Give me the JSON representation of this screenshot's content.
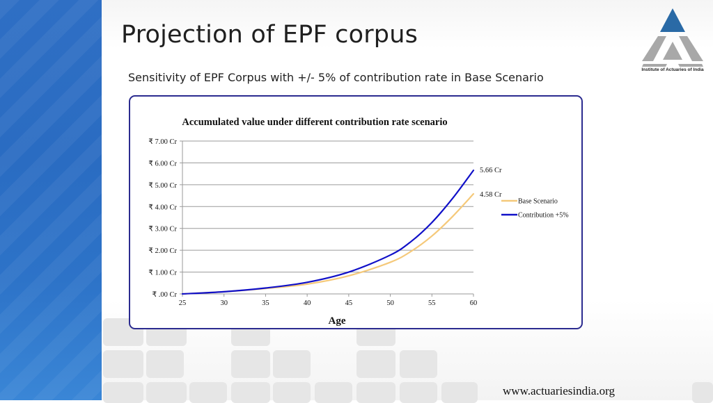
{
  "slide": {
    "title": "Projection of EPF corpus",
    "subtitle": "Sensitivity of EPF Corpus with +/- 5% of contribution rate in Base Scenario",
    "footer_url": "www.actuariesindia.org",
    "logo_caption": "Institute of Actuaries of India",
    "colors": {
      "accent_blue": "#2f6fc4",
      "chart_border": "#2b2b8f",
      "logo_blue": "#2a6aa6",
      "logo_grey": "#a8a8a8"
    }
  },
  "chart_data": {
    "type": "line",
    "title": "Accumulated value under different contribution rate scenario",
    "xlabel": "Age",
    "ylabel": "",
    "xlim": [
      25,
      60
    ],
    "ylim": [
      0,
      7
    ],
    "x_ticks": [
      25,
      30,
      35,
      40,
      45,
      50,
      55,
      60
    ],
    "y_ticks": [
      0,
      1,
      2,
      3,
      4,
      5,
      6,
      7
    ],
    "y_tick_labels": [
      "₹ .00 Cr",
      "₹ 1.00 Cr",
      "₹ 2.00 Cr",
      "₹ 3.00 Cr",
      "₹ 4.00 Cr",
      "₹ 5.00 Cr",
      "₹ 6.00 Cr",
      "₹ 7.00 Cr"
    ],
    "grid": true,
    "legend_position": "right",
    "x": [
      25,
      30,
      35,
      40,
      45,
      50,
      52.5,
      55,
      57.5,
      60
    ],
    "series": [
      {
        "name": "Base Scenario",
        "color": "#f5c97a",
        "values": [
          0,
          0.1,
          0.25,
          0.45,
          0.83,
          1.45,
          1.95,
          2.65,
          3.55,
          4.58
        ]
      },
      {
        "name": "Contribution +5%",
        "color": "#1010c8",
        "values": [
          0,
          0.1,
          0.27,
          0.53,
          1.0,
          1.78,
          2.4,
          3.27,
          4.38,
          5.66
        ]
      }
    ],
    "annotations": [
      {
        "text": "5.66 Cr",
        "x": 60,
        "y": 5.66
      },
      {
        "text": "4.58  Cr",
        "x": 60,
        "y": 4.58
      }
    ]
  }
}
